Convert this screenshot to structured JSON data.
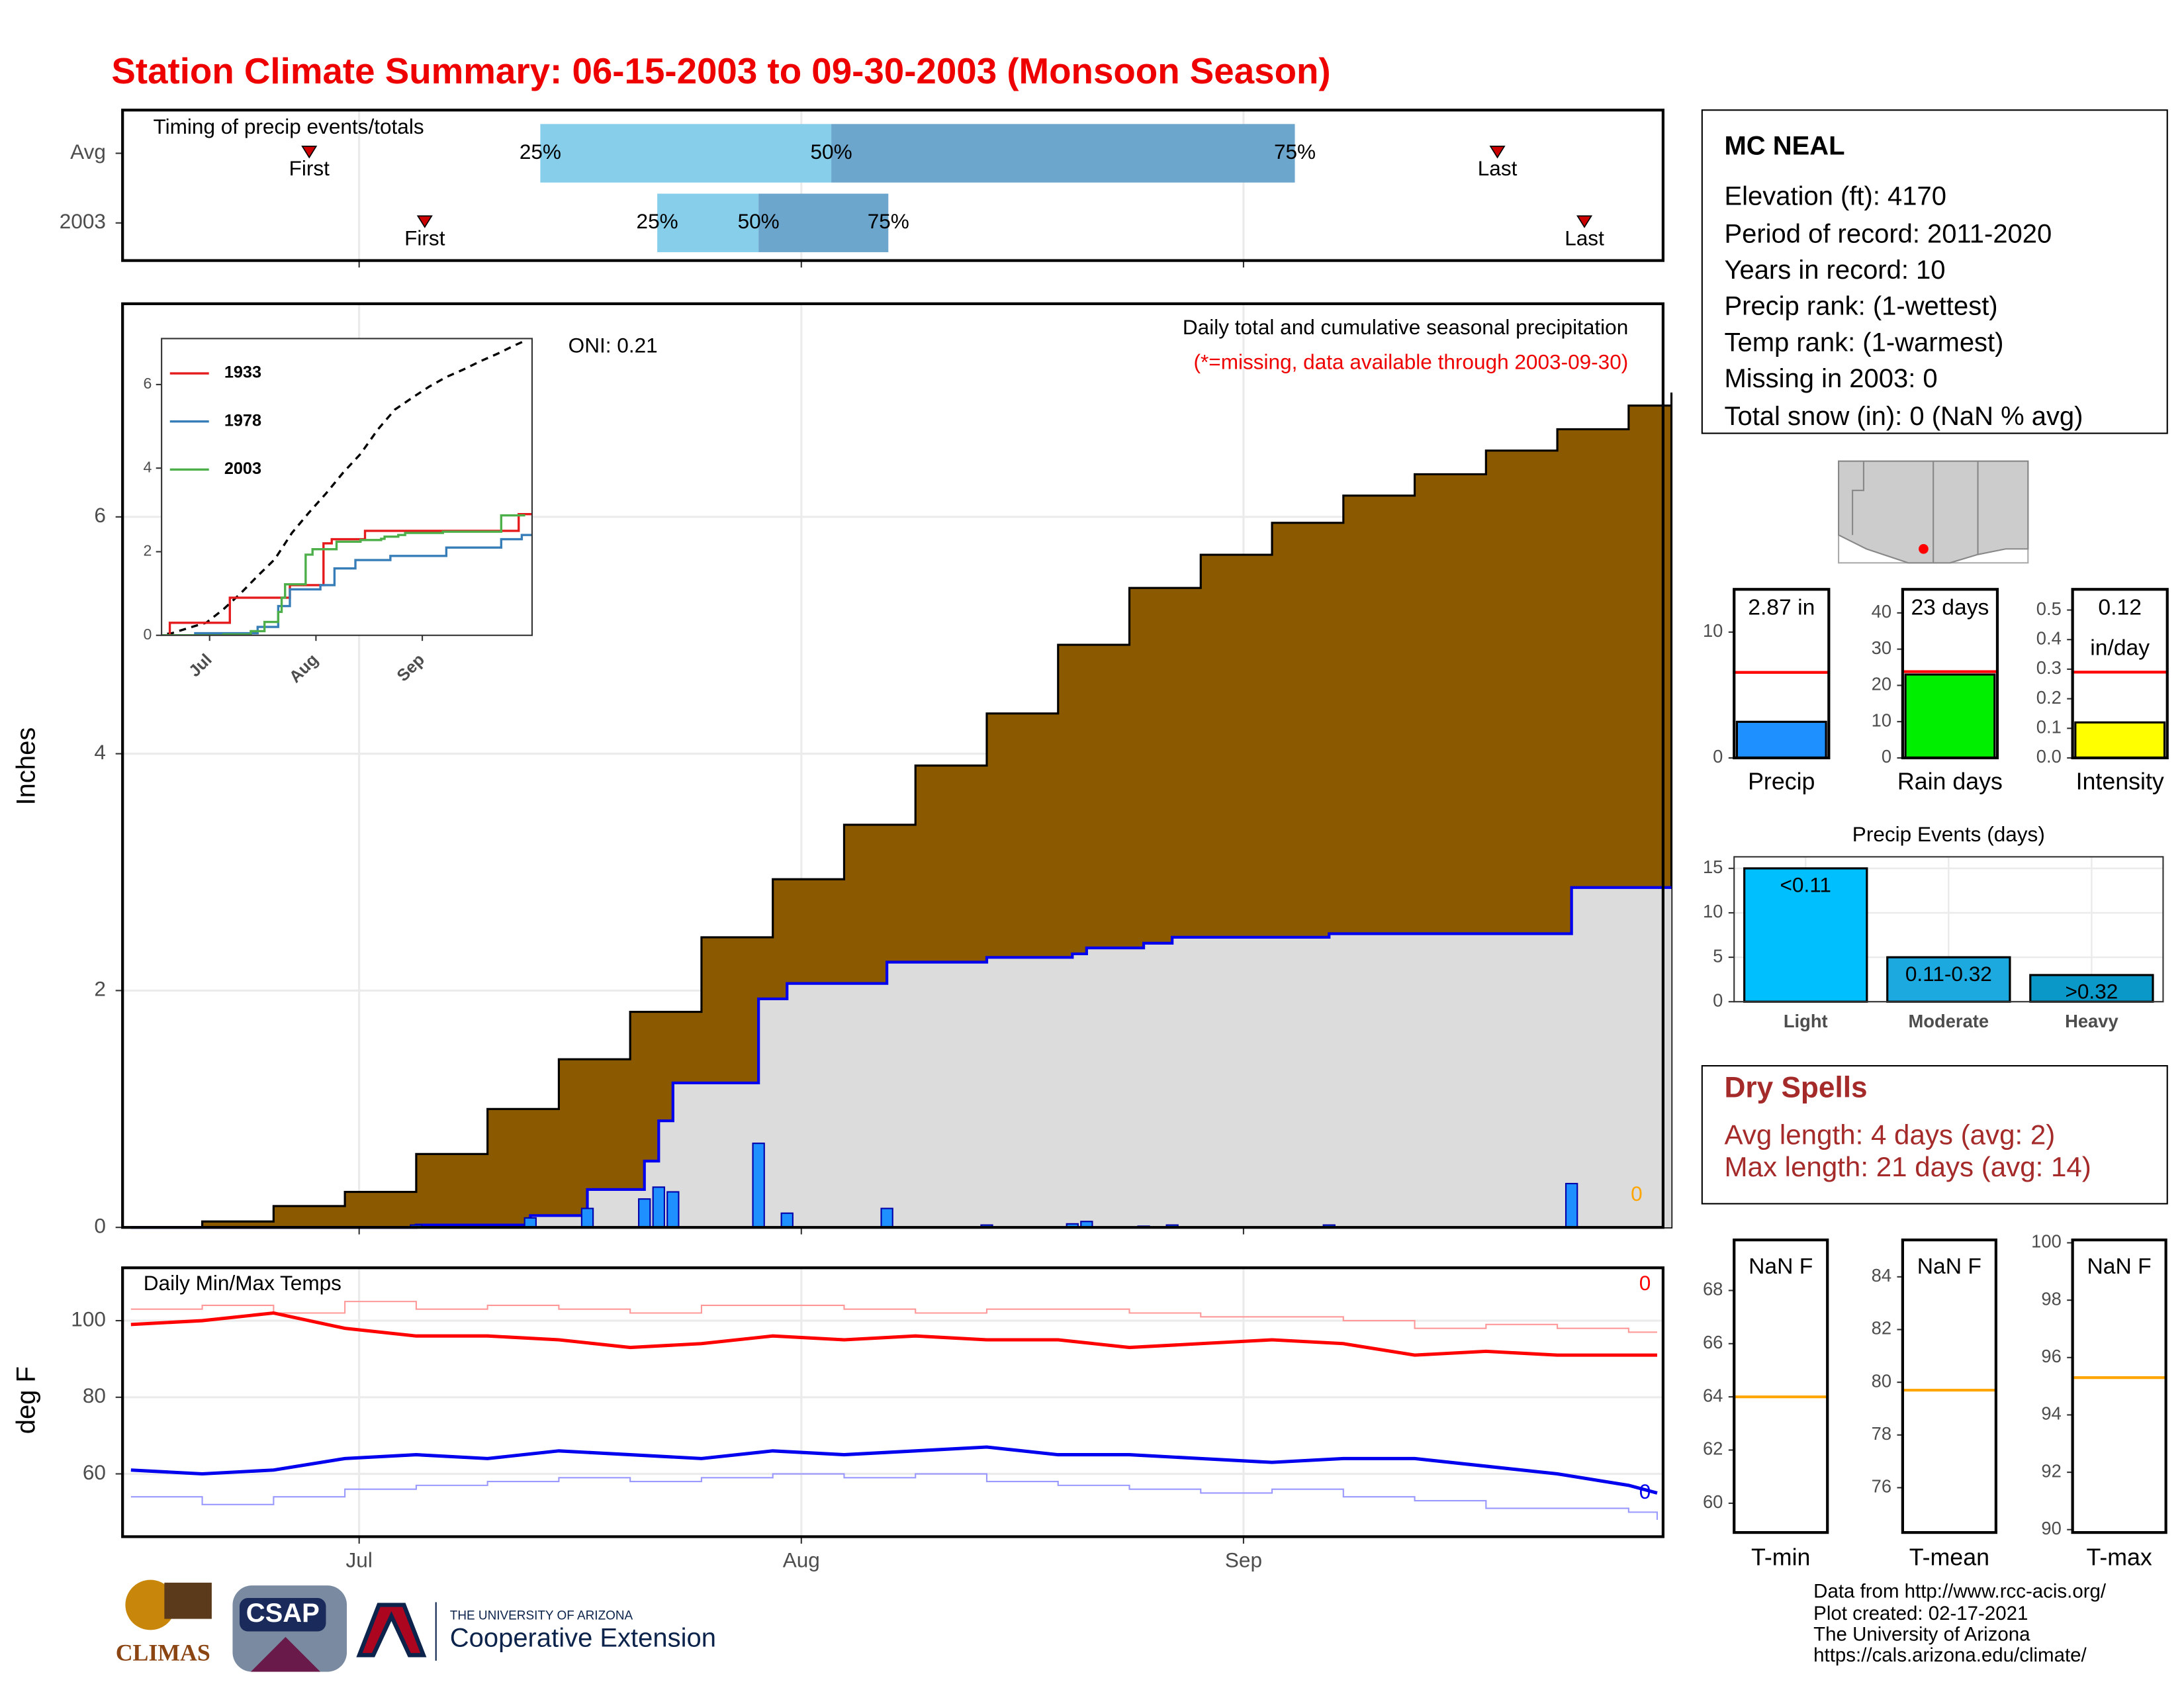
{
  "title": "Station Climate Summary: 06-15-2003 to 09-30-2003 (Monsoon Season)",
  "chart_data": [
    {
      "type": "timeline",
      "title": "Timing of precip events/totals",
      "xlim": [
        0,
        108
      ],
      "xticks": [
        16,
        47,
        78
      ],
      "markers": {
        "first": "First",
        "last": "Last",
        "color": "#cc0000"
      },
      "quantile_labels": [
        "25%",
        "50%",
        "75%"
      ],
      "colors": [
        "#87ceeb",
        "#6ca6cd"
      ],
      "rows": [
        {
          "name": "Avg",
          "first": 12.5,
          "quantiles": [
            28.7,
            49.1,
            81.6
          ],
          "last": 95.8
        },
        {
          "name": "2003",
          "first": 20.6,
          "quantiles": [
            36.9,
            44,
            53.1
          ],
          "last": 101.9
        }
      ]
    },
    {
      "type": "step-area",
      "title": "Daily total and cumulative seasonal precipitation",
      "subtitle": "(*=missing, data available through 2003-09-30)",
      "annotation": "ONI: 0.21",
      "missing": 0,
      "ylabel": "Inches",
      "xlim": [
        0,
        108
      ],
      "ylim": [
        0,
        7.8
      ],
      "yticks": [
        0,
        2,
        4,
        6
      ],
      "xticks": [
        16,
        47,
        78
      ],
      "grid": true,
      "average": {
        "color": "#8b5a00",
        "x": [
          0,
          5,
          10,
          15,
          20,
          25,
          30,
          35,
          40,
          45,
          50,
          55,
          60,
          65,
          70,
          75,
          80,
          85,
          90,
          95,
          100,
          105,
          108
        ],
        "values": [
          0,
          0.05,
          0.18,
          0.3,
          0.62,
          1.0,
          1.42,
          1.82,
          2.45,
          2.94,
          3.4,
          3.9,
          4.34,
          4.92,
          5.4,
          5.68,
          5.95,
          6.18,
          6.36,
          6.56,
          6.74,
          6.94,
          7.05
        ]
      },
      "cumulative": {
        "color": "#0000ee",
        "fill": "#dcdcdc",
        "x": [
          0,
          20,
          28,
          32,
          36,
          37,
          38,
          44,
          46,
          53,
          60,
          66,
          67,
          71,
          73,
          84,
          101,
          108
        ],
        "values": [
          0,
          0.02,
          0.1,
          0.32,
          0.56,
          0.9,
          1.22,
          1.93,
          2.06,
          2.24,
          2.28,
          2.31,
          2.36,
          2.4,
          2.45,
          2.48,
          2.87,
          2.87
        ]
      },
      "daily": {
        "color": "#1e90ff",
        "x": [
          20,
          28,
          32,
          36,
          37,
          38,
          44,
          46,
          53,
          60,
          66,
          67,
          71,
          73,
          84,
          101
        ],
        "values": [
          0.02,
          0.08,
          0.16,
          0.24,
          0.34,
          0.3,
          0.71,
          0.12,
          0.16,
          0.02,
          0.03,
          0.05,
          0.01,
          0.02,
          0.02,
          0.37
        ]
      }
    },
    {
      "type": "line",
      "inset": true,
      "xlim": [
        2,
        110
      ],
      "ylim": [
        0,
        7.1
      ],
      "yticks": [
        0,
        2,
        4,
        6
      ],
      "xticks": [
        {
          "value": 16,
          "label": "Jul"
        },
        {
          "value": 47,
          "label": "Aug"
        },
        {
          "value": 78,
          "label": "Sep"
        }
      ],
      "series": [
        {
          "name": "1933",
          "color": "#e41a1c",
          "x": [
            2,
            4.4,
            21.9,
            39.4,
            49.2,
            51.6,
            61.3,
            106.1,
            110
          ],
          "values": [
            0,
            0.3,
            0.9,
            1.2,
            2.2,
            2.3,
            2.5,
            2.9,
            2.9
          ]
        },
        {
          "name": "1978",
          "color": "#377eb8",
          "x": [
            2,
            11.8,
            30,
            36,
            39.4,
            48.3,
            52.4,
            58.5,
            68.7,
            85,
            101,
            107,
            110
          ],
          "values": [
            0,
            0.05,
            0.2,
            0.7,
            1.1,
            1.2,
            1.6,
            1.8,
            1.9,
            2.1,
            2.3,
            2.4,
            2.4
          ]
        },
        {
          "name": "2003",
          "color": "#4daf4a"
        }
      ]
    },
    {
      "type": "temps",
      "title": "Daily Min/Max Temps",
      "ylabel": "deg F",
      "xlim": [
        0,
        108
      ],
      "ylim": [
        43.6,
        113.8
      ],
      "yticks": [
        60,
        80,
        100
      ],
      "xticks": [
        {
          "value": 16,
          "label": "Jul"
        },
        {
          "value": 47,
          "label": "Aug"
        },
        {
          "value": 78,
          "label": "Sep"
        }
      ],
      "grid": true,
      "x": [
        0,
        5,
        10,
        15,
        20,
        25,
        30,
        35,
        40,
        45,
        50,
        55,
        60,
        65,
        70,
        75,
        80,
        85,
        90,
        95,
        100,
        105,
        107
      ],
      "series": [
        {
          "color": "#ff9999",
          "step": true,
          "values": [
            103,
            104,
            102,
            105,
            103,
            104,
            103,
            102,
            104,
            104,
            103,
            102,
            103,
            103,
            102,
            101,
            101,
            100,
            98,
            99,
            98,
            97,
            97
          ]
        },
        {
          "color": "#9999ff",
          "step": true,
          "values": [
            54,
            52,
            54,
            56,
            57,
            58,
            59,
            58,
            59,
            60,
            59,
            60,
            58,
            57,
            56,
            55,
            56,
            54,
            53,
            51,
            51,
            50,
            48
          ]
        },
        {
          "color": "#ff0000",
          "missing": 0,
          "values": [
            99,
            100,
            102,
            98,
            96,
            96,
            95,
            93,
            94,
            96,
            95,
            96,
            95,
            95,
            93,
            94,
            95,
            94,
            91,
            92,
            91,
            91,
            91
          ]
        },
        {
          "color": "#0000ee",
          "missing": 0,
          "values": [
            61,
            60,
            61,
            64,
            65,
            64,
            66,
            65,
            64,
            66,
            65,
            66,
            67,
            65,
            65,
            64,
            63,
            64,
            64,
            62,
            60,
            57,
            55
          ]
        }
      ]
    },
    {
      "type": "summary-bar",
      "xlabel": "Precip",
      "value": 2.87,
      "value_label": "2.87 in",
      "average": 6.8,
      "ylim": [
        0,
        13.4
      ],
      "yticks": [
        0,
        10
      ],
      "color": "#1e90ff"
    },
    {
      "type": "summary-bar",
      "xlabel": "Rain days",
      "value": 23,
      "value_label": "23 days",
      "average": 23.8,
      "ylim": [
        0,
        46.5
      ],
      "yticks": [
        0,
        10,
        20,
        30,
        40
      ],
      "color": "#00ee00"
    },
    {
      "type": "summary-bar",
      "xlabel": "Intensity",
      "value": 0.12,
      "value_label": "0.12",
      "unit": "in/day",
      "average": 0.29,
      "ylim": [
        0,
        0.57
      ],
      "yticks": [
        {
          "value": 0,
          "label": "0.0"
        },
        0.1,
        0.2,
        0.3,
        0.4,
        0.5
      ],
      "color": "#ffff00"
    },
    {
      "type": "bar",
      "title": "Precip Events (days)",
      "categories": [
        "Light",
        "Moderate",
        "Heavy"
      ],
      "values": [
        15,
        5,
        3
      ],
      "ranges": [
        "<0.11",
        "0.11-0.32",
        ">0.32"
      ],
      "colors": [
        "#00bfff",
        "#1ca9e0",
        "#0a98c9"
      ],
      "ylim": [
        0,
        16.3
      ],
      "yticks": [
        0,
        5,
        10,
        15
      ],
      "grid": true
    },
    {
      "type": "summary-line",
      "xlabel": "T-min",
      "value_label": "NaN F",
      "average": 64,
      "ylim": [
        58.9,
        69.9
      ],
      "yticks": [
        60,
        62,
        64,
        66,
        68
      ],
      "color": "#ffa500"
    },
    {
      "type": "summary-line",
      "xlabel": "T-mean",
      "value_label": "NaN F",
      "average": 79.7,
      "ylim": [
        74.3,
        85.4
      ],
      "yticks": [
        76,
        78,
        80,
        82,
        84
      ],
      "color": "#ffa500"
    },
    {
      "type": "summary-line",
      "xlabel": "T-max",
      "value_label": "NaN F",
      "average": 95.3,
      "ylim": [
        89.9,
        100.1
      ],
      "yticks": [
        90,
        92,
        94,
        96,
        98,
        100
      ],
      "color": "#ffa500"
    }
  ],
  "station": {
    "name": "MC NEAL",
    "lines": [
      "Elevation (ft): 4170",
      "Period of record: 2011-2020",
      "Years in record: 10",
      "Precip rank:  (1-wettest)",
      "Temp rank:  (1-warmest)",
      "Missing in 2003: 0",
      "Total snow (in): 0 (NaN % avg)"
    ]
  },
  "dry_spells": {
    "title": "Dry Spells",
    "lines": [
      "Avg length: 4 days (avg: 2)",
      "Max length: 21 days (avg: 14)"
    ]
  },
  "logos": {
    "climas": "CLIMAS",
    "csap": "CSAP",
    "university": "THE UNIVERSITY OF ARIZONA",
    "extension": "Cooperative Extension"
  },
  "credits": [
    "Data from http://www.rcc-acis.org/",
    "Plot created: 02-17-2021",
    "The University of Arizona",
    "https://cals.arizona.edu/climate/"
  ]
}
